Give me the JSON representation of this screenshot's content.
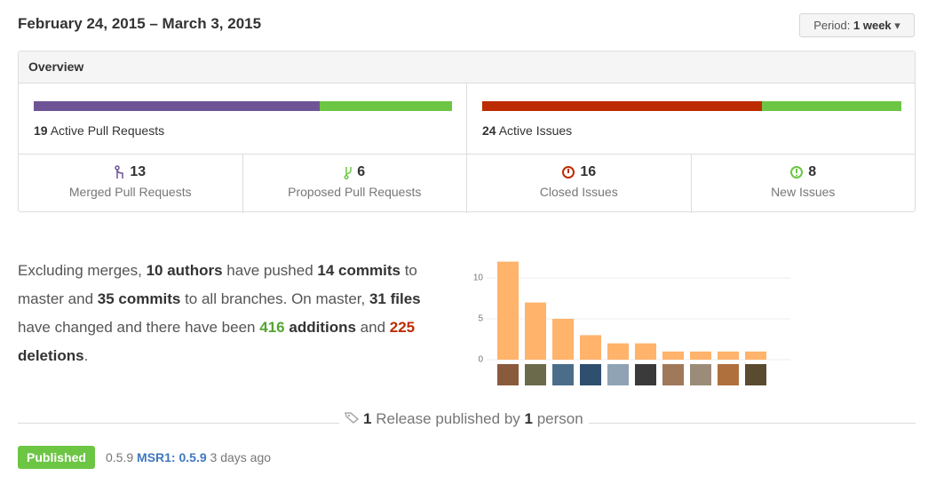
{
  "header": {
    "date_range": "February 24, 2015 – March 3, 2015",
    "period_label": "Period:",
    "period_value": "1 week"
  },
  "overview": {
    "title": "Overview",
    "pull_requests": {
      "active": 19,
      "active_label": "Active Pull Requests",
      "merged": 13,
      "merged_label": "Merged Pull Requests",
      "proposed": 6,
      "proposed_label": "Proposed Pull Requests"
    },
    "issues": {
      "active": 24,
      "active_label": "Active Issues",
      "closed": 16,
      "closed_label": "Closed Issues",
      "new": 8,
      "new_label": "New Issues"
    }
  },
  "summary": [
    "Excluding merges,",
    "10 authors",
    "have pushed",
    "14 commits",
    "to master and",
    "35 commits",
    "to all branches. On master,",
    "31 files",
    "have changed and there have been",
    "416",
    "additions",
    "and",
    "225",
    "deletions",
    "."
  ],
  "chart_data": {
    "type": "bar",
    "categories": [
      null,
      null,
      null,
      null,
      null,
      null,
      null,
      null,
      null,
      null
    ],
    "values": [
      12,
      7,
      5,
      3,
      2,
      2,
      1,
      1,
      1,
      1
    ],
    "color": "#ffb36b",
    "ylim": [
      0,
      12
    ],
    "yticks": [
      0,
      5,
      10
    ],
    "grid": true
  },
  "releases": {
    "count": 1,
    "text": "Release published by",
    "people": 1,
    "suffix": "person",
    "badge": "Published",
    "tag": "0.5.9",
    "link": "MSR1: 0.5.9",
    "age": "3 days ago"
  }
}
